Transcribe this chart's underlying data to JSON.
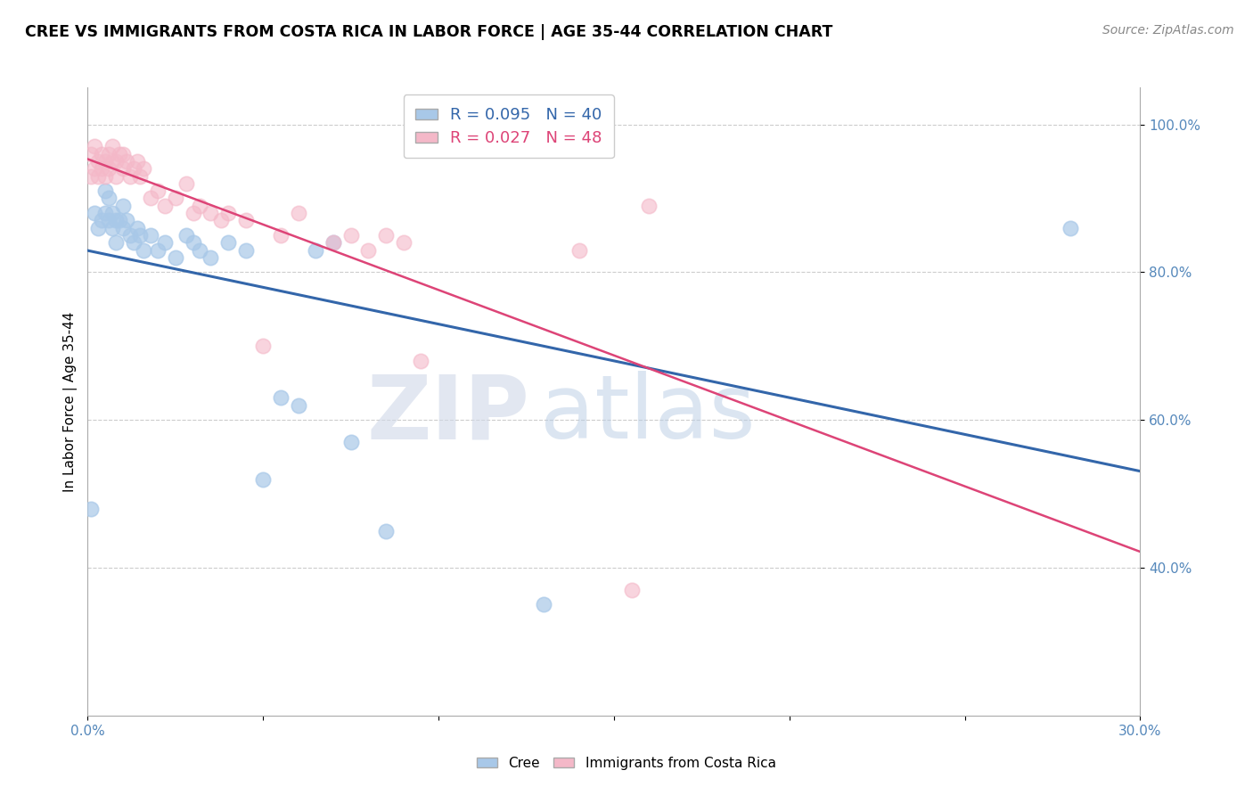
{
  "title": "CREE VS IMMIGRANTS FROM COSTA RICA IN LABOR FORCE | AGE 35-44 CORRELATION CHART",
  "source": "Source: ZipAtlas.com",
  "ylabel": "In Labor Force | Age 35-44",
  "xlim": [
    0.0,
    0.3
  ],
  "ylim": [
    0.2,
    1.05
  ],
  "x_ticks": [
    0.0,
    0.05,
    0.1,
    0.15,
    0.2,
    0.25,
    0.3
  ],
  "x_tick_labels": [
    "0.0%",
    "",
    "",
    "",
    "",
    "",
    "30.0%"
  ],
  "y_ticks": [
    0.4,
    0.6,
    0.8,
    1.0
  ],
  "y_tick_labels": [
    "40.0%",
    "60.0%",
    "80.0%",
    "100.0%"
  ],
  "legend_blue_r": "R = 0.095",
  "legend_blue_n": "N = 40",
  "legend_pink_r": "R = 0.027",
  "legend_pink_n": "N = 48",
  "blue_color": "#a8c8e8",
  "pink_color": "#f4b8c8",
  "blue_line_color": "#3366aa",
  "pink_line_color": "#dd4477",
  "watermark_zip": "ZIP",
  "watermark_atlas": "atlas",
  "blue_scatter_x": [
    0.001,
    0.002,
    0.003,
    0.004,
    0.005,
    0.005,
    0.006,
    0.006,
    0.007,
    0.007,
    0.008,
    0.008,
    0.009,
    0.01,
    0.01,
    0.011,
    0.012,
    0.013,
    0.014,
    0.015,
    0.016,
    0.018,
    0.02,
    0.022,
    0.025,
    0.028,
    0.03,
    0.032,
    0.035,
    0.04,
    0.045,
    0.05,
    0.055,
    0.06,
    0.065,
    0.07,
    0.075,
    0.085,
    0.13,
    0.28
  ],
  "blue_scatter_y": [
    0.48,
    0.88,
    0.86,
    0.87,
    0.88,
    0.91,
    0.87,
    0.9,
    0.86,
    0.88,
    0.84,
    0.87,
    0.87,
    0.86,
    0.89,
    0.87,
    0.85,
    0.84,
    0.86,
    0.85,
    0.83,
    0.85,
    0.83,
    0.84,
    0.82,
    0.85,
    0.84,
    0.83,
    0.82,
    0.84,
    0.83,
    0.52,
    0.63,
    0.62,
    0.83,
    0.84,
    0.57,
    0.45,
    0.35,
    0.86
  ],
  "pink_scatter_x": [
    0.001,
    0.001,
    0.002,
    0.002,
    0.003,
    0.003,
    0.004,
    0.004,
    0.005,
    0.005,
    0.006,
    0.006,
    0.007,
    0.007,
    0.008,
    0.008,
    0.009,
    0.01,
    0.01,
    0.011,
    0.012,
    0.013,
    0.014,
    0.015,
    0.016,
    0.018,
    0.02,
    0.022,
    0.025,
    0.028,
    0.03,
    0.032,
    0.035,
    0.038,
    0.04,
    0.045,
    0.05,
    0.055,
    0.06,
    0.07,
    0.075,
    0.08,
    0.085,
    0.09,
    0.095,
    0.14,
    0.155,
    0.16
  ],
  "pink_scatter_y": [
    0.93,
    0.96,
    0.94,
    0.97,
    0.95,
    0.93,
    0.94,
    0.96,
    0.95,
    0.93,
    0.94,
    0.96,
    0.95,
    0.97,
    0.93,
    0.95,
    0.96,
    0.94,
    0.96,
    0.95,
    0.93,
    0.94,
    0.95,
    0.93,
    0.94,
    0.9,
    0.91,
    0.89,
    0.9,
    0.92,
    0.88,
    0.89,
    0.88,
    0.87,
    0.88,
    0.87,
    0.7,
    0.85,
    0.88,
    0.84,
    0.85,
    0.83,
    0.85,
    0.84,
    0.68,
    0.83,
    0.37,
    0.89
  ]
}
